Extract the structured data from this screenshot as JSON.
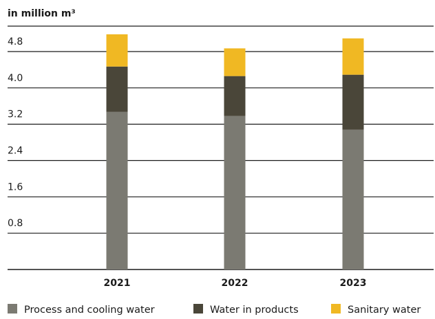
{
  "chart_data": {
    "type": "bar",
    "stacked": true,
    "title": "in million m³",
    "categories": [
      "2021",
      "2022",
      "2023"
    ],
    "series": [
      {
        "name": "Process and cooling water",
        "color": "#7b7a72",
        "values": [
          3.47,
          3.38,
          3.08
        ]
      },
      {
        "name": "Water in products",
        "color": "#4a4639",
        "values": [
          1.0,
          0.88,
          1.21
        ]
      },
      {
        "name": "Sanitary water",
        "color": "#f0b823",
        "values": [
          0.71,
          0.61,
          0.8
        ]
      }
    ],
    "yticks": [
      "0.8",
      "1.6",
      "2.4",
      "3.2",
      "4.0",
      "4.8"
    ],
    "ylim": [
      0,
      5.36
    ],
    "grid": true,
    "legend_position": "bottom"
  }
}
